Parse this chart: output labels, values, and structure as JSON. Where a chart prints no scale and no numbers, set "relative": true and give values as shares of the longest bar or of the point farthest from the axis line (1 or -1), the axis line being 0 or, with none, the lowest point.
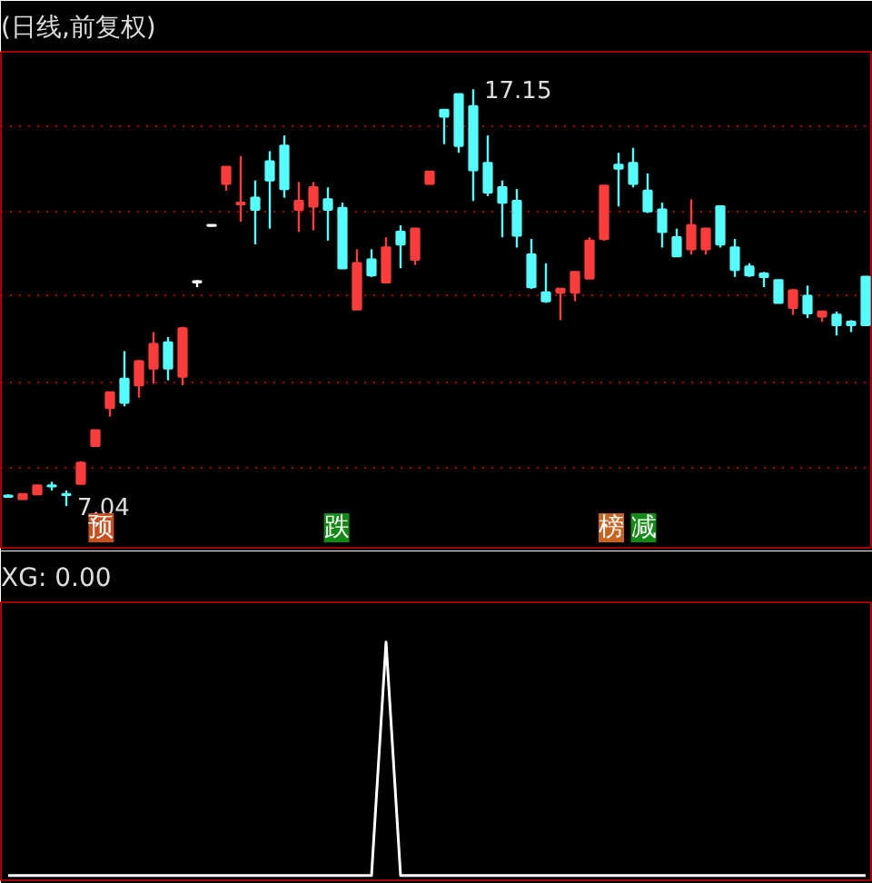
{
  "chart_data": [
    {
      "type": "candlestick",
      "title": "(日线,前复权)",
      "grid": "y",
      "yticks": [
        {
          "value": 7.99,
          "label": null
        },
        {
          "value": 10.05,
          "label": null
        },
        {
          "value": 12.16,
          "label": null
        },
        {
          "value": 14.18,
          "label": null
        },
        {
          "value": 16.24,
          "label": null
        }
      ],
      "categories": [
        null,
        null,
        null,
        null,
        null,
        null,
        null,
        null,
        null,
        null,
        null,
        null,
        null,
        null,
        null,
        null,
        null,
        null,
        null,
        null,
        null,
        null,
        null,
        null,
        null,
        null,
        null,
        null,
        null,
        null,
        null,
        null,
        null,
        null,
        null,
        null,
        null,
        null,
        null,
        null,
        null,
        null,
        null,
        null,
        null,
        null,
        null,
        null,
        null,
        null,
        null,
        null,
        null,
        null,
        null,
        null,
        null,
        null,
        null,
        null
      ],
      "ohlc": [
        [
          7.29,
          7.33,
          7.25,
          7.27
        ],
        [
          7.21,
          7.33,
          7.21,
          7.33
        ],
        [
          7.33,
          7.54,
          7.33,
          7.54
        ],
        [
          7.54,
          7.63,
          7.42,
          7.52
        ],
        [
          7.33,
          7.42,
          7.04,
          7.31
        ],
        [
          7.58,
          8.13,
          7.58,
          8.09
        ],
        [
          8.5,
          8.88,
          8.5,
          8.88
        ],
        [
          9.42,
          9.8,
          9.21,
          9.8
        ],
        [
          10.13,
          10.8,
          9.46,
          9.55
        ],
        [
          9.97,
          10.59,
          9.67,
          10.55
        ],
        [
          10.38,
          11.26,
          10.01,
          10.97
        ],
        [
          11.01,
          11.14,
          10.09,
          10.38
        ],
        [
          10.18,
          11.39,
          9.97,
          11.35
        ],
        [
          12.49,
          12.52,
          12.35,
          12.47
        ],
        [
          13.86,
          13.86,
          13.84,
          13.84
        ],
        [
          14.86,
          15.27,
          14.69,
          15.27
        ],
        [
          14.36,
          15.53,
          13.94,
          14.4
        ],
        [
          14.52,
          14.94,
          13.39,
          14.23
        ],
        [
          15.4,
          15.65,
          13.77,
          14.94
        ],
        [
          15.78,
          16.03,
          14.52,
          14.73
        ],
        [
          14.23,
          14.9,
          13.69,
          14.44
        ],
        [
          14.31,
          14.9,
          13.73,
          14.77
        ],
        [
          14.48,
          14.77,
          13.48,
          14.23
        ],
        [
          14.27,
          14.4,
          12.81,
          12.81
        ],
        [
          11.81,
          13.27,
          11.81,
          12.93
        ],
        [
          13.02,
          13.27,
          12.6,
          12.64
        ],
        [
          12.47,
          13.56,
          12.47,
          13.31
        ],
        [
          13.69,
          13.85,
          12.81,
          13.39
        ],
        [
          13.02,
          13.77,
          12.89,
          13.77
        ],
        [
          14.86,
          15.15,
          14.86,
          15.15
        ],
        [
          16.65,
          16.65,
          15.82,
          16.49
        ],
        [
          17.03,
          17.03,
          15.61,
          15.78
        ],
        [
          16.74,
          17.15,
          14.44,
          15.19
        ],
        [
          15.36,
          16.03,
          14.56,
          14.65
        ],
        [
          14.77,
          14.94,
          13.56,
          14.4
        ],
        [
          14.44,
          14.73,
          13.31,
          13.6
        ],
        [
          13.14,
          13.52,
          12.31,
          12.35
        ],
        [
          12.22,
          12.93,
          11.97,
          12.01
        ],
        [
          12.22,
          12.31,
          11.55,
          12.31
        ],
        [
          12.22,
          12.72,
          12.01,
          12.72
        ],
        [
          12.56,
          13.56,
          12.56,
          13.48
        ],
        [
          13.52,
          14.81,
          13.48,
          14.81
        ],
        [
          15.32,
          15.61,
          14.31,
          15.23
        ],
        [
          15.36,
          15.73,
          14.77,
          14.86
        ],
        [
          14.69,
          15.11,
          14.15,
          14.19
        ],
        [
          14.23,
          14.4,
          13.31,
          13.69
        ],
        [
          13.56,
          13.77,
          13.1,
          13.1
        ],
        [
          13.27,
          14.48,
          13.14,
          13.85
        ],
        [
          13.27,
          13.77,
          13.14,
          13.77
        ],
        [
          14.31,
          14.31,
          13.31,
          13.39
        ],
        [
          13.31,
          13.52,
          12.6,
          12.77
        ],
        [
          12.85,
          12.93,
          12.6,
          12.64
        ],
        [
          12.68,
          12.72,
          12.35,
          12.6
        ],
        [
          12.52,
          12.52,
          11.97,
          11.97
        ],
        [
          11.85,
          12.31,
          11.68,
          12.27
        ],
        [
          12.14,
          12.39,
          11.6,
          11.72
        ],
        [
          11.64,
          11.76,
          11.51,
          11.76
        ],
        [
          11.68,
          11.76,
          11.18,
          11.43
        ],
        [
          11.51,
          11.55,
          11.26,
          11.43
        ],
        [
          12.6,
          12.6,
          11.43,
          11.43
        ]
      ],
      "colors": [
        "#54ffff",
        "#ff3c3c",
        "#ff3c3c",
        "#54ffff",
        "#54ffff",
        "#ff3c3c",
        "#ff3c3c",
        "#ff3c3c",
        "#54ffff",
        "#ff3c3c",
        "#ff3c3c",
        "#54ffff",
        "#ff3c3c",
        "#ffffff",
        "#ffffff",
        "#ff3c3c",
        "#ff3c3c",
        "#54ffff",
        "#54ffff",
        "#54ffff",
        "#ff3c3c",
        "#ff3c3c",
        "#54ffff",
        "#54ffff",
        "#ff3c3c",
        "#54ffff",
        "#ff3c3c",
        "#54ffff",
        "#ff3c3c",
        "#ff3c3c",
        "#54ffff",
        "#54ffff",
        "#54ffff",
        "#54ffff",
        "#54ffff",
        "#54ffff",
        "#54ffff",
        "#54ffff",
        "#ff3c3c",
        "#ff3c3c",
        "#ff3c3c",
        "#ff3c3c",
        "#54ffff",
        "#54ffff",
        "#54ffff",
        "#54ffff",
        "#54ffff",
        "#ff3c3c",
        "#ff3c3c",
        "#54ffff",
        "#54ffff",
        "#54ffff",
        "#54ffff",
        "#54ffff",
        "#ff3c3c",
        "#54ffff",
        "#ff3c3c",
        "#54ffff",
        "#54ffff",
        "#54ffff"
      ],
      "annotations": [
        "17.15",
        "7.04",
        "预",
        "跌",
        "榜",
        "减"
      ]
    },
    {
      "type": "line",
      "title": "XG: 0.00",
      "relative": true,
      "categories": [
        null,
        null,
        null,
        null,
        null,
        null,
        null,
        null,
        null,
        null,
        null,
        null,
        null,
        null,
        null,
        null,
        null,
        null,
        null,
        null,
        null,
        null,
        null,
        null,
        null,
        null,
        null,
        null,
        null,
        null,
        null,
        null,
        null,
        null,
        null,
        null,
        null,
        null,
        null,
        null,
        null,
        null,
        null,
        null,
        null,
        null,
        null,
        null,
        null,
        null,
        null,
        null,
        null,
        null,
        null,
        null,
        null,
        null,
        null,
        null
      ],
      "series": [
        {
          "color": "#ffffff",
          "values": [
            0,
            0,
            0,
            0,
            0,
            0,
            0,
            0,
            0,
            0,
            0,
            0,
            0,
            0,
            0,
            0,
            0,
            0,
            0,
            0,
            0,
            0,
            0,
            0,
            0,
            0,
            1,
            0,
            0,
            0,
            0,
            0,
            0,
            0,
            0,
            0,
            0,
            0,
            0,
            0,
            0,
            0,
            0,
            0,
            0,
            0,
            0,
            0,
            0,
            0,
            0,
            0,
            0,
            0,
            0,
            0,
            0,
            0,
            0,
            0
          ]
        }
      ]
    }
  ]
}
